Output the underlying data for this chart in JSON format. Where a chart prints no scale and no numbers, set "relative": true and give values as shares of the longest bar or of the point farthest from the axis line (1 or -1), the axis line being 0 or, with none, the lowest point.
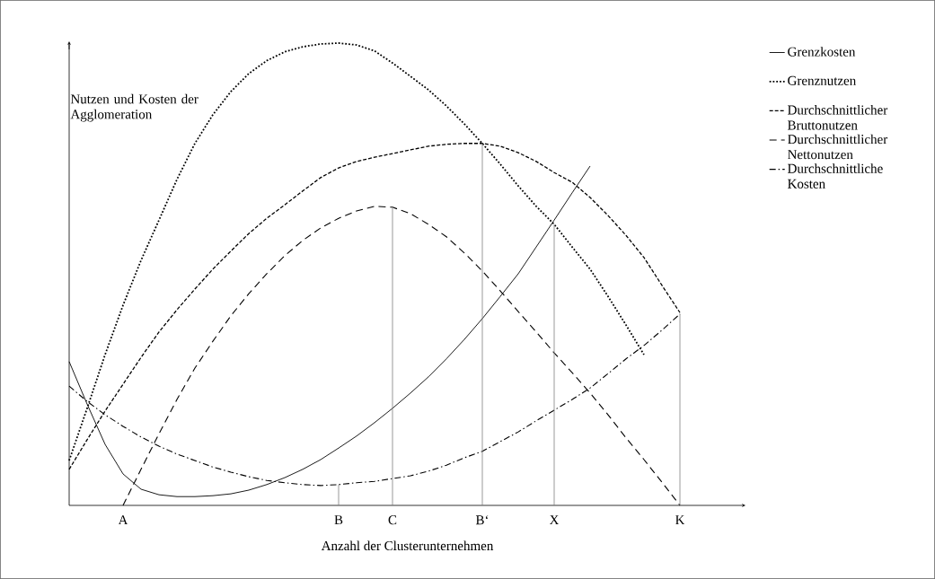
{
  "chart_data": {
    "type": "line",
    "relative": true,
    "xlabel": "Anzahl der Clusterunternehmen",
    "ylabel": "Nutzen und Kosten der Agglomeration",
    "categories": [
      null,
      null,
      null,
      "A",
      null,
      null,
      null,
      null,
      null,
      null,
      null,
      null,
      null,
      null,
      null,
      "B",
      null,
      null,
      "C",
      null,
      null,
      null,
      null,
      "B‘",
      null,
      null,
      null,
      "X",
      null,
      null,
      null,
      null,
      null,
      null,
      "K",
      null,
      null,
      null
    ],
    "legend": "top right",
    "marker": "none",
    "series": [
      {
        "name": "Grenzkosten",
        "color": "#000000",
        "line_style": "solid",
        "values": [
          0.311,
          0.219,
          0.132,
          0.068,
          0.035,
          0.023,
          0.019,
          0.019,
          0.021,
          0.025,
          0.033,
          0.045,
          0.06,
          0.078,
          0.099,
          0.124,
          0.15,
          0.179,
          0.21,
          0.243,
          0.278,
          0.317,
          0.359,
          0.404,
          0.452,
          0.501,
          0.559,
          0.617,
          0.676,
          0.734,
          null,
          null,
          null,
          null,
          null,
          null,
          null,
          null
        ]
      },
      {
        "name": "Grenznutzen",
        "color": "#000000",
        "line_style": "dotted",
        "values": [
          0.097,
          0.21,
          0.326,
          0.433,
          0.53,
          0.617,
          0.705,
          0.783,
          0.845,
          0.895,
          0.934,
          0.962,
          0.981,
          0.992,
          0.998,
          1.0,
          0.996,
          0.983,
          0.957,
          0.928,
          0.899,
          0.864,
          0.825,
          0.783,
          0.738,
          0.691,
          0.647,
          0.608,
          0.559,
          0.511,
          0.452,
          0.39,
          0.326,
          null,
          null,
          null,
          null,
          null
        ]
      },
      {
        "name": "Durchschnittlicher Bruttonutzen",
        "color": "#000000",
        "line_style": "densely dashed",
        "values": [
          0.078,
          0.142,
          0.204,
          0.262,
          0.32,
          0.375,
          0.423,
          0.468,
          0.511,
          0.55,
          0.588,
          0.621,
          0.65,
          0.68,
          0.709,
          0.73,
          0.744,
          0.753,
          0.761,
          0.769,
          0.777,
          0.781,
          0.783,
          0.783,
          0.777,
          0.763,
          0.744,
          0.72,
          0.699,
          0.666,
          0.627,
          0.584,
          0.536,
          0.476,
          0.417,
          null,
          null,
          null
        ]
      },
      {
        "name": "Durchschnittlicher Nettonutzen",
        "color": "#000000",
        "line_style": "dashed",
        "values": [
          null,
          null,
          null,
          0,
          0.078,
          0.155,
          0.229,
          0.297,
          0.355,
          0.41,
          0.458,
          0.501,
          0.54,
          0.573,
          0.6,
          0.621,
          0.637,
          0.647,
          0.645,
          0.631,
          0.608,
          0.581,
          0.546,
          0.507,
          0.464,
          0.419,
          0.375,
          0.33,
          0.287,
          0.243,
          0.196,
          0.146,
          0.099,
          0.05,
          0,
          null,
          null,
          null
        ]
      },
      {
        "name": "Durchschnittliche Kosten",
        "color": "#000000",
        "line_style": "dashdot",
        "values": [
          0.258,
          0.225,
          0.196,
          0.171,
          0.148,
          0.128,
          0.111,
          0.097,
          0.083,
          0.072,
          0.062,
          0.054,
          0.049,
          0.045,
          0.043,
          0.045,
          0.049,
          0.052,
          0.058,
          0.064,
          0.074,
          0.087,
          0.103,
          0.117,
          0.138,
          0.159,
          0.183,
          0.206,
          0.229,
          0.254,
          0.285,
          0.317,
          0.346,
          0.379,
          0.414,
          null,
          null,
          null
        ]
      },
      {
        "type": "bar",
        "color": "#808080",
        "line_style": "dotted",
        "values": [
          null,
          null,
          null,
          null,
          null,
          null,
          null,
          null,
          null,
          null,
          null,
          null,
          null,
          null,
          null,
          0.045,
          null,
          null,
          0.645,
          null,
          null,
          null,
          null,
          0.783,
          null,
          null,
          null,
          0.608,
          null,
          null,
          null,
          null,
          null,
          null,
          0.414,
          null,
          null,
          null
        ]
      }
    ]
  }
}
